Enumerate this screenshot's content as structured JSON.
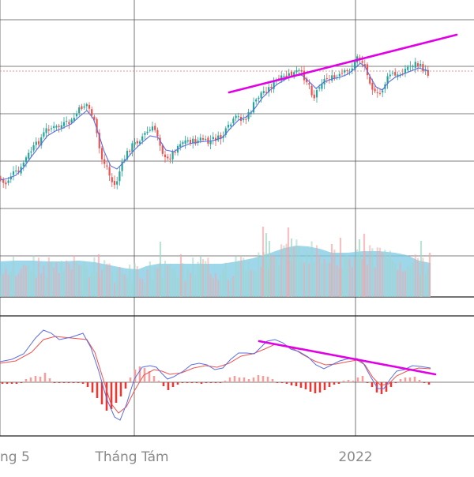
{
  "chart_data": {
    "type": "candlestick-with-volume-and-macd",
    "x_axis": {
      "tick_labels": [
        "ng 5",
        "Tháng Tám",
        "2022"
      ]
    },
    "colors": {
      "up": "#26a69a",
      "down": "#ef5350",
      "price_ma": "#5b6ee1",
      "volume_up": "#9fd6c8",
      "volume_down": "#f2a7a6",
      "volume_ma_fill": "#7ec8e3",
      "macd_line": "#5b6ee1",
      "signal_line": "#ef5350",
      "histogram_up": "#f1a09d",
      "histogram_down": "#e53935",
      "trendline": "#e100e6",
      "grid": "#555555",
      "reference_line": "#e57373"
    },
    "price_pane": {
      "candles_shape": [
        [
          0,
          225
        ],
        [
          6,
          235
        ],
        [
          15,
          220
        ],
        [
          25,
          218
        ],
        [
          30,
          205
        ],
        [
          40,
          190
        ],
        [
          50,
          178
        ],
        [
          60,
          162
        ],
        [
          70,
          162
        ],
        [
          80,
          158
        ],
        [
          90,
          155
        ],
        [
          98,
          142
        ],
        [
          104,
          135
        ],
        [
          110,
          132
        ],
        [
          118,
          148
        ],
        [
          122,
          168
        ],
        [
          128,
          200
        ],
        [
          136,
          212
        ],
        [
          140,
          228
        ],
        [
          146,
          236
        ],
        [
          152,
          215
        ],
        [
          160,
          195
        ],
        [
          166,
          185
        ],
        [
          175,
          178
        ],
        [
          185,
          168
        ],
        [
          195,
          162
        ],
        [
          200,
          172
        ],
        [
          205,
          190
        ],
        [
          210,
          205
        ],
        [
          220,
          192
        ],
        [
          228,
          180
        ],
        [
          238,
          178
        ],
        [
          248,
          180
        ],
        [
          256,
          175
        ],
        [
          262,
          182
        ],
        [
          270,
          176
        ],
        [
          280,
          175
        ],
        [
          290,
          160
        ],
        [
          300,
          148
        ],
        [
          310,
          152
        ],
        [
          318,
          140
        ],
        [
          322,
          130
        ],
        [
          330,
          118
        ],
        [
          340,
          112
        ],
        [
          350,
          102
        ],
        [
          360,
          98
        ],
        [
          370,
          94
        ],
        [
          378,
          90
        ],
        [
          385,
          98
        ],
        [
          392,
          108
        ],
        [
          397,
          125
        ],
        [
          405,
          105
        ],
        [
          415,
          98
        ],
        [
          425,
          100
        ],
        [
          432,
          95
        ],
        [
          440,
          90
        ],
        [
          448,
          84
        ],
        [
          452,
          70
        ],
        [
          458,
          78
        ],
        [
          464,
          88
        ],
        [
          470,
          108
        ],
        [
          476,
          122
        ],
        [
          482,
          118
        ],
        [
          488,
          104
        ],
        [
          495,
          92
        ],
        [
          502,
          98
        ],
        [
          510,
          90
        ],
        [
          518,
          84
        ],
        [
          526,
          80
        ],
        [
          534,
          86
        ],
        [
          542,
          94
        ]
      ],
      "moving_average_shape": [
        [
          0,
          228
        ],
        [
          10,
          226
        ],
        [
          20,
          222
        ],
        [
          30,
          212
        ],
        [
          40,
          198
        ],
        [
          50,
          185
        ],
        [
          60,
          172
        ],
        [
          70,
          166
        ],
        [
          80,
          162
        ],
        [
          90,
          157
        ],
        [
          100,
          148
        ],
        [
          110,
          140
        ],
        [
          118,
          150
        ],
        [
          125,
          170
        ],
        [
          132,
          192
        ],
        [
          140,
          210
        ],
        [
          148,
          214
        ],
        [
          158,
          204
        ],
        [
          168,
          192
        ],
        [
          178,
          182
        ],
        [
          190,
          172
        ],
        [
          200,
          174
        ],
        [
          210,
          190
        ],
        [
          220,
          192
        ],
        [
          230,
          186
        ],
        [
          240,
          182
        ],
        [
          250,
          180
        ],
        [
          260,
          179
        ],
        [
          270,
          178
        ],
        [
          282,
          174
        ],
        [
          292,
          162
        ],
        [
          302,
          152
        ],
        [
          312,
          148
        ],
        [
          322,
          138
        ],
        [
          332,
          124
        ],
        [
          342,
          114
        ],
        [
          352,
          106
        ],
        [
          362,
          100
        ],
        [
          372,
          96
        ],
        [
          382,
          95
        ],
        [
          392,
          104
        ],
        [
          400,
          112
        ],
        [
          410,
          104
        ],
        [
          420,
          100
        ],
        [
          430,
          98
        ],
        [
          440,
          94
        ],
        [
          448,
          88
        ],
        [
          456,
          80
        ],
        [
          462,
          84
        ],
        [
          468,
          96
        ],
        [
          476,
          110
        ],
        [
          484,
          114
        ],
        [
          492,
          104
        ],
        [
          500,
          98
        ],
        [
          510,
          94
        ],
        [
          520,
          90
        ],
        [
          530,
          86
        ],
        [
          542,
          90
        ]
      ],
      "trendline": [
        [
          290,
          117
        ],
        [
          578,
          44
        ]
      ],
      "reference_line": 90
    },
    "volume_pane": {
      "ma_area_shape": [
        [
          0,
          331
        ],
        [
          20,
          330
        ],
        [
          40,
          330
        ],
        [
          60,
          331
        ],
        [
          80,
          331
        ],
        [
          100,
          330
        ],
        [
          120,
          332
        ],
        [
          140,
          336
        ],
        [
          160,
          340
        ],
        [
          175,
          341
        ],
        [
          185,
          337
        ],
        [
          200,
          334
        ],
        [
          220,
          334
        ],
        [
          240,
          334
        ],
        [
          260,
          334
        ],
        [
          280,
          334
        ],
        [
          300,
          331
        ],
        [
          320,
          327
        ],
        [
          340,
          321
        ],
        [
          360,
          314
        ],
        [
          375,
          311
        ],
        [
          390,
          312
        ],
        [
          405,
          315
        ],
        [
          420,
          320
        ],
        [
          440,
          320
        ],
        [
          460,
          318
        ],
        [
          480,
          318
        ],
        [
          500,
          320
        ],
        [
          515,
          323
        ],
        [
          530,
          330
        ],
        [
          545,
          333
        ]
      ],
      "spike_bars": [
        [
          333,
          287
        ],
        [
          337,
          295
        ],
        [
          365,
          288
        ],
        [
          369,
          302
        ],
        [
          461,
          296
        ],
        [
          455,
          303
        ],
        [
          431,
          301
        ],
        [
          203,
          306
        ],
        [
          229,
          322
        ],
        [
          254,
          324
        ],
        [
          125,
          322
        ],
        [
          341,
          305
        ],
        [
          420,
          309
        ],
        [
          533,
          305
        ],
        [
          544,
          320
        ]
      ]
    },
    "macd_pane": {
      "macd_line_shape": [
        [
          0,
          458
        ],
        [
          15,
          455
        ],
        [
          30,
          448
        ],
        [
          45,
          428
        ],
        [
          55,
          418
        ],
        [
          65,
          422
        ],
        [
          75,
          430
        ],
        [
          90,
          427
        ],
        [
          105,
          422
        ],
        [
          115,
          440
        ],
        [
          125,
          470
        ],
        [
          135,
          505
        ],
        [
          145,
          528
        ],
        [
          152,
          532
        ],
        [
          160,
          512
        ],
        [
          170,
          480
        ],
        [
          180,
          465
        ],
        [
          190,
          463
        ],
        [
          198,
          465
        ],
        [
          205,
          473
        ],
        [
          212,
          480
        ],
        [
          220,
          477
        ],
        [
          232,
          470
        ],
        [
          242,
          462
        ],
        [
          252,
          460
        ],
        [
          262,
          462
        ],
        [
          272,
          468
        ],
        [
          282,
          466
        ],
        [
          292,
          455
        ],
        [
          302,
          447
        ],
        [
          312,
          447
        ],
        [
          322,
          448
        ],
        [
          330,
          440
        ],
        [
          338,
          432
        ],
        [
          348,
          430
        ],
        [
          358,
          434
        ],
        [
          368,
          442
        ],
        [
          378,
          445
        ],
        [
          390,
          452
        ],
        [
          400,
          462
        ],
        [
          410,
          467
        ],
        [
          420,
          462
        ],
        [
          430,
          457
        ],
        [
          442,
          454
        ],
        [
          452,
          454
        ],
        [
          460,
          460
        ],
        [
          468,
          475
        ],
        [
          478,
          492
        ],
        [
          486,
          492
        ],
        [
          494,
          480
        ],
        [
          502,
          470
        ],
        [
          512,
          468
        ],
        [
          522,
          463
        ],
        [
          532,
          464
        ],
        [
          545,
          466
        ]
      ],
      "signal_line_shape": [
        [
          0,
          460
        ],
        [
          20,
          457
        ],
        [
          40,
          446
        ],
        [
          55,
          430
        ],
        [
          70,
          426
        ],
        [
          90,
          428
        ],
        [
          110,
          430
        ],
        [
          120,
          446
        ],
        [
          130,
          478
        ],
        [
          140,
          510
        ],
        [
          150,
          523
        ],
        [
          160,
          515
        ],
        [
          170,
          495
        ],
        [
          182,
          475
        ],
        [
          195,
          468
        ],
        [
          205,
          470
        ],
        [
          215,
          474
        ],
        [
          230,
          472
        ],
        [
          245,
          466
        ],
        [
          260,
          463
        ],
        [
          275,
          465
        ],
        [
          290,
          460
        ],
        [
          305,
          451
        ],
        [
          320,
          448
        ],
        [
          335,
          442
        ],
        [
          348,
          436
        ],
        [
          360,
          438
        ],
        [
          372,
          442
        ],
        [
          385,
          450
        ],
        [
          398,
          457
        ],
        [
          412,
          462
        ],
        [
          425,
          461
        ],
        [
          440,
          458
        ],
        [
          452,
          456
        ],
        [
          462,
          462
        ],
        [
          472,
          478
        ],
        [
          482,
          488
        ],
        [
          492,
          486
        ],
        [
          502,
          476
        ],
        [
          515,
          470
        ],
        [
          530,
          466
        ],
        [
          545,
          467
        ]
      ],
      "histogram_shape": [
        [
          3,
          486
        ],
        [
          9,
          486
        ],
        [
          15,
          486
        ],
        [
          21,
          486
        ],
        [
          27,
          484
        ],
        [
          33,
          480
        ],
        [
          39,
          478
        ],
        [
          45,
          476
        ],
        [
          51,
          477
        ],
        [
          57,
          472
        ],
        [
          63,
          479
        ],
        [
          69,
          484
        ],
        [
          75,
          485
        ],
        [
          81,
          485
        ],
        [
          87,
          485
        ],
        [
          93,
          485
        ],
        [
          99,
          485
        ],
        [
          105,
          486
        ],
        [
          111,
          490
        ],
        [
          117,
          497
        ],
        [
          123,
          504
        ],
        [
          129,
          512
        ],
        [
          135,
          520
        ],
        [
          141,
          518
        ],
        [
          147,
          510
        ],
        [
          153,
          502
        ],
        [
          159,
          492
        ],
        [
          165,
          478
        ],
        [
          171,
          468
        ],
        [
          177,
          464
        ],
        [
          183,
          466
        ],
        [
          189,
          470
        ],
        [
          195,
          476
        ],
        [
          201,
          482
        ],
        [
          207,
          489
        ],
        [
          213,
          494
        ],
        [
          219,
          490
        ],
        [
          225,
          487
        ],
        [
          231,
          484
        ],
        [
          237,
          484
        ],
        [
          243,
          484
        ],
        [
          249,
          485
        ],
        [
          255,
          486
        ],
        [
          261,
          485
        ],
        [
          267,
          484
        ],
        [
          273,
          485
        ],
        [
          279,
          484
        ],
        [
          285,
          482
        ],
        [
          291,
          478
        ],
        [
          297,
          476
        ],
        [
          303,
          478
        ],
        [
          309,
          478
        ],
        [
          315,
          480
        ],
        [
          321,
          478
        ],
        [
          327,
          475
        ],
        [
          333,
          476
        ],
        [
          339,
          477
        ],
        [
          345,
          480
        ],
        [
          351,
          484
        ],
        [
          357,
          485
        ],
        [
          363,
          486
        ],
        [
          369,
          488
        ],
        [
          375,
          489
        ],
        [
          381,
          491
        ],
        [
          387,
          493
        ],
        [
          393,
          496
        ],
        [
          399,
          498
        ],
        [
          405,
          497
        ],
        [
          411,
          494
        ],
        [
          417,
          490
        ],
        [
          423,
          487
        ],
        [
          429,
          486
        ],
        [
          435,
          482
        ],
        [
          441,
          481
        ],
        [
          447,
          482
        ],
        [
          453,
          478
        ],
        [
          459,
          476
        ],
        [
          465,
          484
        ],
        [
          471,
          490
        ],
        [
          477,
          497
        ],
        [
          483,
          499
        ],
        [
          489,
          496
        ],
        [
          495,
          490
        ],
        [
          501,
          484
        ],
        [
          507,
          480
        ],
        [
          513,
          478
        ],
        [
          519,
          478
        ],
        [
          525,
          477
        ],
        [
          531,
          481
        ],
        [
          537,
          484
        ],
        [
          543,
          487
        ]
      ],
      "trendline": [
        [
          328,
          432
        ],
        [
          551,
          474
        ]
      ]
    }
  }
}
